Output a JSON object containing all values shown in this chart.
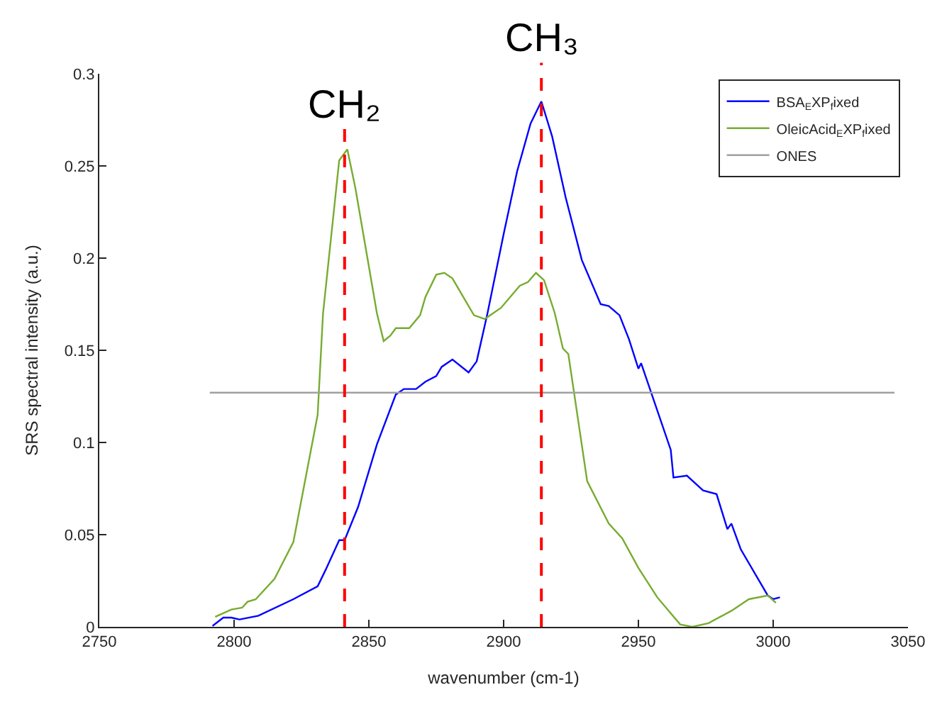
{
  "chart_data": {
    "type": "line",
    "xlabel": "wavenumber (cm-1)",
    "ylabel": "SRS spectral intensity (a.u.)",
    "xlim": [
      2750,
      3050
    ],
    "xticks": [
      2750,
      2800,
      2850,
      2900,
      2950,
      3000,
      3050
    ],
    "ylim": [
      0,
      0.3
    ],
    "yticks": [
      0,
      0.05,
      0.1,
      0.15,
      0.2,
      0.25,
      0.3
    ],
    "grid": false,
    "legend": "top right",
    "marker": "none",
    "line_style": "solid",
    "series": [
      {
        "name": "BSA$_{E}$XP$_{f}$ixed",
        "color": "#0000ff",
        "x": [
          2792,
          2796,
          2799,
          2802,
          2809,
          2822,
          2831,
          2834,
          2839,
          2841,
          2846,
          2853,
          2860,
          2863,
          2867.5,
          2871,
          2875,
          2877,
          2881,
          2887,
          2890,
          2894,
          2900,
          2905,
          2910,
          2914,
          2918,
          2923,
          2929,
          2936,
          2939,
          2943,
          2946.5,
          2950,
          2951,
          2962,
          2963,
          2968,
          2974,
          2979,
          2983,
          2984.5,
          2988,
          2998,
          3000,
          3002.5
        ],
        "values": [
          0.0005,
          0.005,
          0.005,
          0.004,
          0.006,
          0.015,
          0.022,
          0.031,
          0.047,
          0.047,
          0.065,
          0.099,
          0.126,
          0.129,
          0.129,
          0.133,
          0.136,
          0.141,
          0.145,
          0.138,
          0.144,
          0.17,
          0.213,
          0.247,
          0.273,
          0.285,
          0.266,
          0.233,
          0.199,
          0.175,
          0.174,
          0.169,
          0.156,
          0.14,
          0.143,
          0.096,
          0.081,
          0.082,
          0.074,
          0.072,
          0.053,
          0.056,
          0.042,
          0.017,
          0.015,
          0.016
        ]
      },
      {
        "name": "OleicAcid$_{E}$XP$_{f}$ixed",
        "color": "#77ac30",
        "x": [
          2793,
          2799,
          2803,
          2805,
          2808,
          2815,
          2822,
          2831,
          2833,
          2839,
          2842,
          2845,
          2853,
          2855.5,
          2858,
          2860,
          2865,
          2869,
          2871,
          2875,
          2878,
          2881,
          2889,
          2893,
          2899,
          2906,
          2909,
          2912,
          2915,
          2919,
          2922,
          2924,
          2931,
          2939,
          2944,
          2950,
          2957,
          2965.5,
          2970,
          2976,
          2984.5,
          2991,
          2998,
          3001
        ],
        "values": [
          0.0054,
          0.0094,
          0.0104,
          0.0136,
          0.0149,
          0.026,
          0.046,
          0.115,
          0.17,
          0.253,
          0.259,
          0.238,
          0.17,
          0.155,
          0.158,
          0.162,
          0.162,
          0.169,
          0.179,
          0.191,
          0.192,
          0.189,
          0.169,
          0.167,
          0.173,
          0.185,
          0.187,
          0.192,
          0.188,
          0.17,
          0.151,
          0.148,
          0.079,
          0.056,
          0.048,
          0.032,
          0.016,
          0.0013,
          0.0,
          0.002,
          0.0087,
          0.015,
          0.017,
          0.013
        ]
      },
      {
        "name": "ONES",
        "color": "#a0a0a0",
        "x": [
          2791,
          3045
        ],
        "values": [
          0.127,
          0.127
        ]
      }
    ],
    "ref_lines": [
      {
        "axis": "x",
        "value": 2841,
        "label": "CH₂",
        "color": "#ff0000",
        "line_style": "dashed"
      },
      {
        "axis": "x",
        "value": 2914,
        "label": "CH₃",
        "color": "#ff0000",
        "line_style": "dashed"
      }
    ]
  }
}
